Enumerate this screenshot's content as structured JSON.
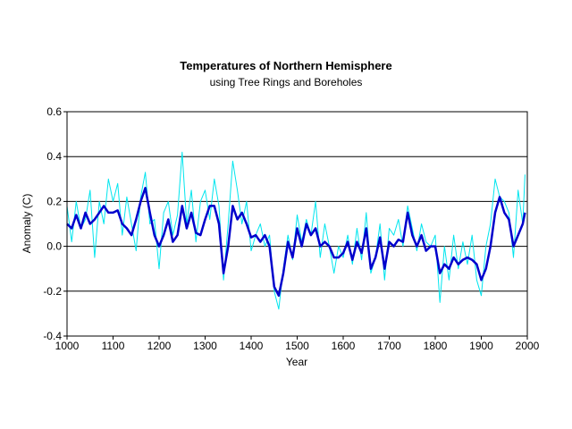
{
  "chart_data": {
    "type": "line",
    "title": "Temperatures of Northern Hemisphere",
    "subtitle": "using Tree Rings and Boreholes",
    "xlabel": "Year",
    "ylabel": "Anomaly (C)",
    "xlim": [
      1000,
      2000
    ],
    "ylim": [
      -0.4,
      0.6
    ],
    "x_ticks": [
      "1000",
      "1100",
      "1200",
      "1300",
      "1400",
      "1500",
      "1600",
      "1700",
      "1800",
      "1900",
      "2000"
    ],
    "y_ticks": [
      "0.6",
      "0.4",
      "0.2",
      "0.0",
      "-0.2",
      "-0.4"
    ],
    "grid": "horizontal",
    "legend": "none",
    "series": [
      {
        "color": "#00e5ee",
        "style": "annual, thin",
        "x": [
          1000,
          1010,
          1020,
          1030,
          1040,
          1050,
          1060,
          1070,
          1080,
          1090,
          1100,
          1110,
          1120,
          1130,
          1140,
          1150,
          1160,
          1170,
          1180,
          1190,
          1200,
          1210,
          1220,
          1230,
          1240,
          1250,
          1260,
          1270,
          1280,
          1290,
          1300,
          1310,
          1320,
          1330,
          1340,
          1350,
          1360,
          1370,
          1380,
          1390,
          1400,
          1410,
          1420,
          1430,
          1440,
          1450,
          1460,
          1470,
          1480,
          1490,
          1500,
          1510,
          1520,
          1530,
          1540,
          1550,
          1560,
          1570,
          1580,
          1590,
          1600,
          1610,
          1620,
          1630,
          1640,
          1650,
          1660,
          1670,
          1680,
          1690,
          1700,
          1710,
          1720,
          1730,
          1740,
          1750,
          1760,
          1770,
          1780,
          1790,
          1800,
          1810,
          1820,
          1830,
          1840,
          1850,
          1860,
          1870,
          1880,
          1890,
          1900,
          1910,
          1920,
          1930,
          1940,
          1950,
          1960,
          1970,
          1980,
          1990,
          1995
        ],
        "y": [
          0.18,
          0.02,
          0.2,
          0.08,
          0.12,
          0.25,
          -0.05,
          0.2,
          0.1,
          0.3,
          0.2,
          0.28,
          0.05,
          0.22,
          0.1,
          -0.02,
          0.22,
          0.33,
          0.1,
          0.12,
          -0.1,
          0.15,
          0.2,
          0.05,
          0.14,
          0.42,
          0.1,
          0.25,
          0.02,
          0.2,
          0.25,
          0.12,
          0.3,
          0.18,
          -0.15,
          0.1,
          0.38,
          0.25,
          0.1,
          0.2,
          -0.02,
          0.05,
          0.1,
          0.0,
          0.05,
          -0.2,
          -0.28,
          -0.1,
          0.05,
          -0.06,
          0.14,
          0.02,
          0.12,
          0.05,
          0.2,
          -0.05,
          0.1,
          0.0,
          -0.12,
          0.0,
          -0.05,
          0.05,
          -0.08,
          0.08,
          -0.06,
          0.15,
          -0.12,
          -0.05,
          0.1,
          -0.15,
          0.08,
          0.05,
          0.12,
          0.0,
          0.18,
          0.08,
          -0.02,
          0.1,
          0.02,
          0.0,
          0.05,
          -0.25,
          0.0,
          -0.15,
          0.05,
          -0.1,
          0.02,
          -0.08,
          0.05,
          -0.15,
          -0.22,
          0.0,
          0.1,
          0.3,
          0.22,
          0.2,
          0.15,
          -0.05,
          0.25,
          0.1,
          0.32
        ]
      },
      {
        "color": "#0000cc",
        "style": "smoothed, thick",
        "x": [
          1000,
          1010,
          1020,
          1030,
          1040,
          1050,
          1060,
          1070,
          1080,
          1090,
          1100,
          1110,
          1120,
          1130,
          1140,
          1150,
          1160,
          1170,
          1180,
          1190,
          1200,
          1210,
          1220,
          1230,
          1240,
          1250,
          1260,
          1270,
          1280,
          1290,
          1300,
          1310,
          1320,
          1330,
          1340,
          1350,
          1360,
          1370,
          1380,
          1390,
          1400,
          1410,
          1420,
          1430,
          1440,
          1450,
          1460,
          1470,
          1480,
          1490,
          1500,
          1510,
          1520,
          1530,
          1540,
          1550,
          1560,
          1570,
          1580,
          1590,
          1600,
          1610,
          1620,
          1630,
          1640,
          1650,
          1660,
          1670,
          1680,
          1690,
          1700,
          1710,
          1720,
          1730,
          1740,
          1750,
          1760,
          1770,
          1780,
          1790,
          1800,
          1810,
          1820,
          1830,
          1840,
          1850,
          1860,
          1870,
          1880,
          1890,
          1900,
          1910,
          1920,
          1930,
          1940,
          1950,
          1960,
          1970,
          1980,
          1990,
          1995
        ],
        "y": [
          0.1,
          0.08,
          0.14,
          0.08,
          0.15,
          0.1,
          0.12,
          0.15,
          0.18,
          0.15,
          0.15,
          0.16,
          0.1,
          0.08,
          0.05,
          0.12,
          0.2,
          0.26,
          0.15,
          0.05,
          0.0,
          0.05,
          0.12,
          0.02,
          0.05,
          0.18,
          0.08,
          0.15,
          0.06,
          0.05,
          0.12,
          0.18,
          0.18,
          0.1,
          -0.12,
          0.0,
          0.18,
          0.12,
          0.15,
          0.1,
          0.04,
          0.05,
          0.02,
          0.05,
          0.0,
          -0.18,
          -0.22,
          -0.12,
          0.02,
          -0.05,
          0.08,
          0.0,
          0.1,
          0.05,
          0.08,
          0.0,
          0.02,
          0.0,
          -0.05,
          -0.05,
          -0.03,
          0.02,
          -0.06,
          0.02,
          -0.03,
          0.08,
          -0.1,
          -0.05,
          0.04,
          -0.1,
          0.02,
          0.0,
          0.03,
          0.02,
          0.15,
          0.05,
          0.0,
          0.05,
          -0.02,
          0.0,
          0.0,
          -0.12,
          -0.08,
          -0.1,
          -0.05,
          -0.08,
          -0.06,
          -0.05,
          -0.06,
          -0.08,
          -0.15,
          -0.1,
          0.0,
          0.15,
          0.22,
          0.15,
          0.12,
          0.0,
          0.05,
          0.1,
          0.15
        ]
      }
    ]
  }
}
